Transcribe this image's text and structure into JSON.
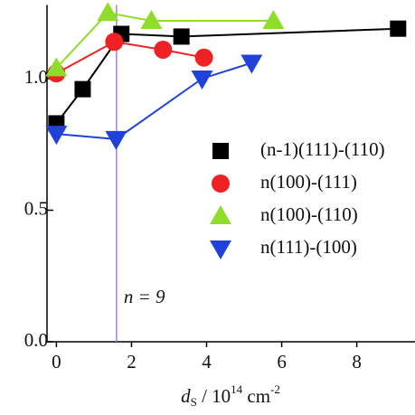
{
  "chart_data": {
    "type": "line",
    "x_label": {
      "symbol": "d",
      "sub": "S",
      "text": " / 10",
      "sup": "14",
      "unit": " cm",
      "unit_sup": "-2"
    },
    "annotation": {
      "text": "n = 9",
      "x": 1.6,
      "color": "#a97ee0"
    },
    "xlim": [
      -0.25,
      9.55
    ],
    "ylim": [
      0,
      1.28
    ],
    "xticks": [
      0,
      2,
      4,
      6,
      8
    ],
    "yticks": [
      {
        "value": 0,
        "label": "0.0"
      },
      {
        "value": 0.5,
        "label": "0.5"
      },
      {
        "value": 1,
        "label": "1.0"
      }
    ],
    "series": [
      {
        "name": "(n-1)(111)-(110)",
        "color": "#000000",
        "marker": "square",
        "x": [
          0,
          0.7,
          1.73,
          3.33,
          9.1
        ],
        "values": [
          0.83,
          0.96,
          1.17,
          1.16,
          1.19
        ]
      },
      {
        "name": "n(100)-(111)",
        "color": "#ee2222",
        "marker": "circle",
        "x": [
          0,
          1.54,
          2.84,
          3.93
        ],
        "values": [
          1.02,
          1.14,
          1.11,
          1.08
        ]
      },
      {
        "name": "n(100)-(110)",
        "color": "#8fdc2a",
        "marker": "triangle-up",
        "x": [
          0,
          1.37,
          2.53,
          5.78
        ],
        "values": [
          1.04,
          1.25,
          1.22,
          1.22
        ]
      },
      {
        "name": "n(111)-(100)",
        "color": "#2142d8",
        "marker": "triangle-down",
        "x": [
          0,
          1.59,
          3.88,
          5.2
        ],
        "values": [
          0.79,
          0.77,
          1.0,
          1.06
        ]
      }
    ]
  }
}
